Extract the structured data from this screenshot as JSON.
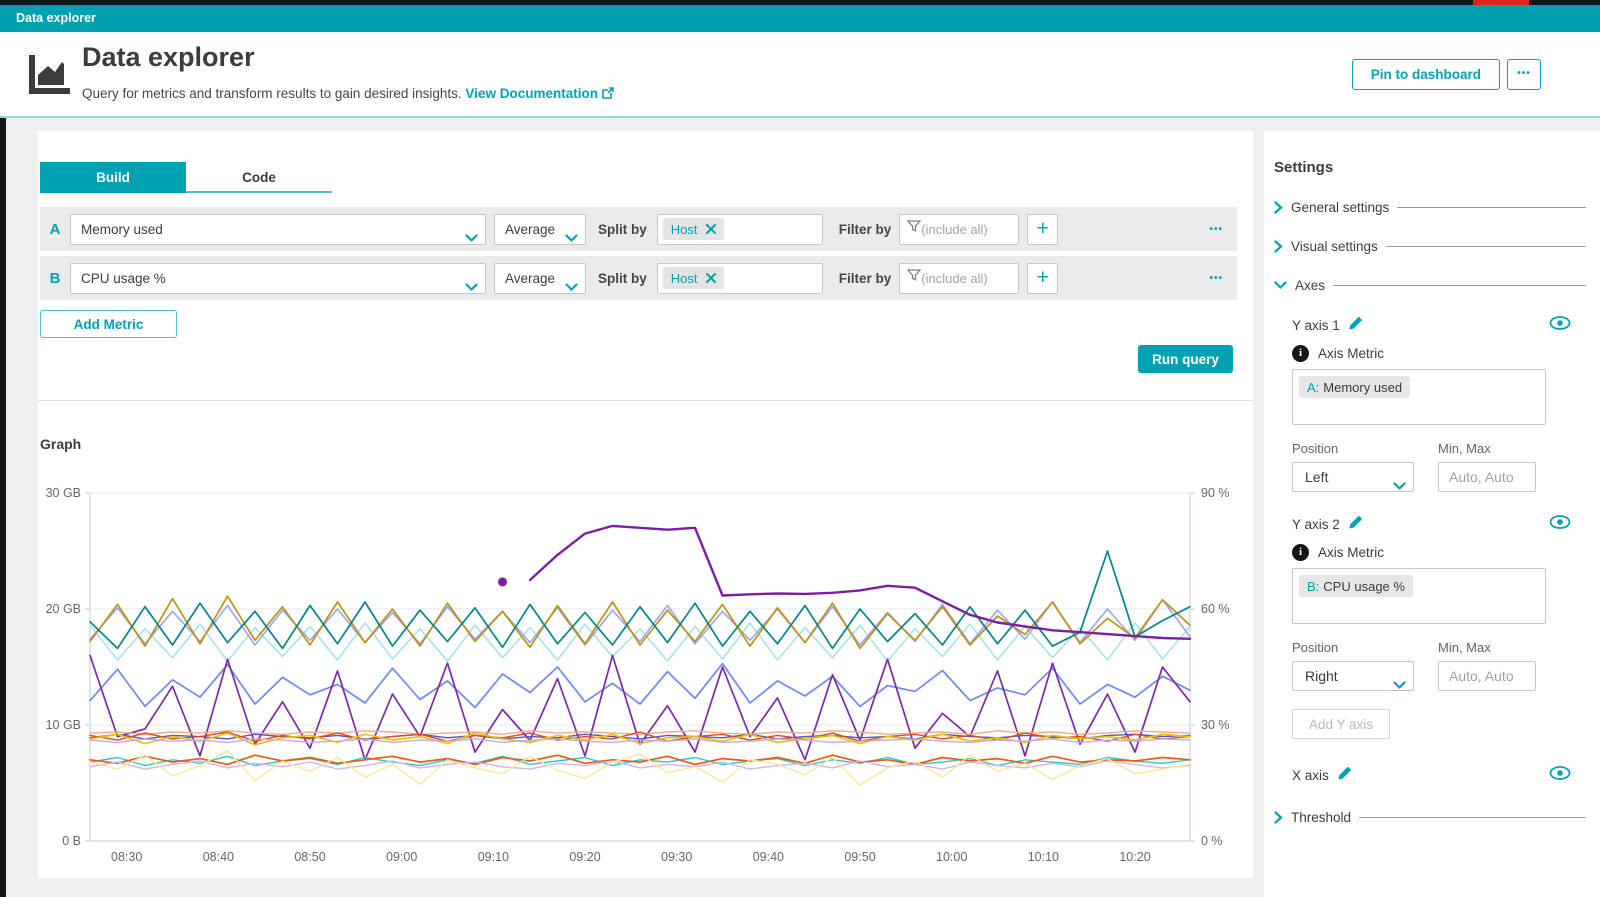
{
  "app_bar": {
    "title": "Data explorer"
  },
  "header": {
    "title": "Data explorer",
    "subtitle": "Query for metrics and transform results to gain desired insights.",
    "doc_link_label": "View Documentation",
    "pin_button_label": "Pin to dashboard",
    "more_button_label": "•••"
  },
  "query_builder": {
    "tabs": [
      {
        "label": "Build"
      },
      {
        "label": "Code"
      }
    ],
    "metrics": [
      {
        "id": "A",
        "metric_name": "Memory used",
        "aggregation": "Average",
        "split_by_label": "Split by",
        "split_chip": "Host",
        "filter_by_label": "Filter by",
        "filter_placeholder": "(include all)",
        "add_label": "+",
        "more_label": "•••"
      },
      {
        "id": "B",
        "metric_name": "CPU usage %",
        "aggregation": "Average",
        "split_by_label": "Split by",
        "split_chip": "Host",
        "filter_by_label": "Filter by",
        "filter_placeholder": "(include all)",
        "add_label": "+",
        "more_label": "•••"
      }
    ],
    "add_metric_label": "Add Metric",
    "run_query_label": "Run query"
  },
  "graph_section": {
    "title": "Graph"
  },
  "chart_data": {
    "type": "line",
    "title": "Graph",
    "x_start": "08:26",
    "x_end": "10:26",
    "x_ticks": [
      "08:30",
      "08:40",
      "08:50",
      "09:00",
      "09:10",
      "09:20",
      "09:30",
      "09:40",
      "09:50",
      "10:00",
      "10:10",
      "10:20"
    ],
    "left_axis": {
      "unit": "GB",
      "min": 0,
      "max": 30,
      "ticks": [
        {
          "v": 0,
          "label": "0 B"
        },
        {
          "v": 10,
          "label": "10 GB"
        },
        {
          "v": 20,
          "label": "20 GB"
        },
        {
          "v": 30,
          "label": "30 GB"
        }
      ]
    },
    "right_axis": {
      "unit": "%",
      "min": 0,
      "max": 90,
      "ticks": [
        {
          "v": 0,
          "label": "0 %"
        },
        {
          "v": 30,
          "label": "30 %"
        },
        {
          "v": 60,
          "label": "60 %"
        },
        {
          "v": 90,
          "label": "90 %"
        }
      ]
    },
    "grid": true,
    "legend": "none",
    "series": [
      {
        "name": "memory-host-pale-cyan",
        "axis": "left",
        "color": "#a8e2e8",
        "width": 1.6,
        "values": [
          18.6,
          15.6,
          18.3,
          15.8,
          18.7,
          15.5,
          18.4,
          15.9,
          18.5,
          15.6,
          18.8,
          15.7,
          18.3,
          15.5,
          18.6,
          15.8,
          18.4,
          15.6,
          18.7,
          15.9,
          18.3,
          15.5,
          18.5,
          15.7,
          18.8,
          15.6,
          18.4,
          15.8,
          18.6,
          15.5,
          18.3,
          15.9,
          18.7,
          15.6,
          18.5,
          15.8,
          18.4,
          15.6,
          18.8,
          15.7,
          18.5
        ]
      },
      {
        "name": "memory-host-periwinkle",
        "axis": "left",
        "color": "#9aa4f2",
        "width": 1.6,
        "values": [
          17.4,
          20.1,
          17.0,
          19.8,
          17.2,
          20.3,
          16.9,
          19.9,
          17.3,
          20.0,
          17.1,
          19.7,
          17.0,
          20.2,
          17.4,
          19.8,
          17.1,
          20.1,
          16.9,
          19.9,
          17.2,
          20.3,
          17.0,
          19.8,
          17.3,
          20.0,
          17.1,
          20.2,
          16.9,
          19.7,
          17.2,
          20.4,
          17.0,
          19.9,
          17.4,
          20.6,
          17.1,
          20.0,
          17.3,
          20.8,
          17.6
        ]
      },
      {
        "name": "memory-host-gold",
        "axis": "left",
        "color": "#bc9312",
        "width": 1.7,
        "values": [
          17.2,
          20.4,
          16.8,
          20.9,
          17.0,
          21.1,
          17.3,
          20.2,
          16.9,
          20.6,
          17.1,
          20.0,
          16.8,
          20.5,
          17.2,
          19.8,
          16.7,
          20.3,
          17.0,
          20.6,
          16.9,
          19.9,
          17.2,
          20.4,
          16.8,
          20.1,
          17.1,
          20.5,
          16.6,
          19.6,
          17.3,
          20.2,
          16.9,
          19.4,
          17.8,
          20.6,
          17.0,
          19.2,
          17.5,
          20.8,
          18.6
        ]
      },
      {
        "name": "memory-host-teal",
        "axis": "left",
        "color": "#00848a",
        "width": 1.7,
        "values": [
          18.9,
          16.6,
          20.2,
          16.9,
          20.5,
          17.1,
          19.8,
          16.6,
          20.3,
          17.0,
          20.6,
          16.8,
          19.9,
          17.2,
          20.1,
          16.7,
          20.4,
          17.0,
          19.7,
          16.9,
          20.2,
          17.1,
          20.5,
          16.8,
          19.8,
          17.0,
          20.3,
          16.6,
          20.0,
          17.2,
          19.6,
          16.9,
          20.2,
          17.0,
          19.9,
          16.8,
          18.0,
          25.0,
          17.6,
          19.0,
          20.2
        ]
      },
      {
        "name": "memory-host-blue",
        "axis": "left",
        "color": "#6e87f2",
        "width": 1.7,
        "values": [
          12.1,
          14.8,
          11.6,
          13.9,
          12.4,
          15.2,
          11.8,
          14.1,
          12.6,
          13.5,
          11.9,
          14.9,
          12.2,
          13.8,
          11.5,
          14.4,
          12.8,
          15.0,
          12.0,
          13.6,
          11.8,
          14.6,
          12.3,
          15.3,
          11.9,
          13.8,
          12.5,
          14.2,
          11.6,
          13.4,
          12.9,
          14.7,
          12.1,
          13.2,
          12.6,
          14.9,
          11.8,
          13.5,
          12.4,
          14.2,
          13.0
        ]
      },
      {
        "name": "cpu-host-purple-jagged",
        "axis": "right",
        "color": "#7c2aa3",
        "width": 1.7,
        "values": [
          48,
          27,
          29,
          40,
          22,
          47,
          25,
          36,
          24,
          44,
          21,
          38,
          27,
          46,
          23,
          34,
          26,
          42,
          22,
          48,
          25,
          35,
          23,
          45,
          27,
          37,
          21,
          43,
          26,
          47,
          24,
          33,
          27,
          44,
          22,
          46,
          25,
          38,
          23,
          45,
          36
        ]
      },
      {
        "name": "memory-host-salmon",
        "axis": "left",
        "color": "#f2a98c",
        "width": 1.4,
        "values": [
          9.3,
          9.4,
          9.2,
          9.4,
          9.3,
          9.5,
          9.3,
          9.2,
          9.4,
          9.3,
          9.5,
          9.4,
          9.2,
          9.3,
          9.4,
          9.2,
          9.5,
          9.3,
          9.4,
          9.3,
          9.2,
          9.4,
          9.5,
          9.3,
          9.2,
          9.4,
          9.3,
          9.5,
          9.4,
          9.2,
          9.3,
          9.4,
          9.2,
          9.5,
          9.3,
          9.4,
          9.2,
          9.3,
          9.5,
          9.4,
          9.3
        ]
      },
      {
        "name": "memory-host-indigo",
        "axis": "left",
        "color": "#4a57c8",
        "width": 1.4,
        "values": [
          8.9,
          9.2,
          8.8,
          9.1,
          9.0,
          8.8,
          9.2,
          9.0,
          8.9,
          9.1,
          8.8,
          9.0,
          9.2,
          8.9,
          9.1,
          8.8,
          9.0,
          8.9,
          9.2,
          9.0,
          8.8,
          9.1,
          9.0,
          8.9,
          9.2,
          8.8,
          9.0,
          9.1,
          8.9,
          9.0,
          8.8,
          9.2,
          9.0,
          8.9,
          9.1,
          9.0,
          8.8,
          9.1,
          9.2,
          9.0,
          9.1
        ]
      },
      {
        "name": "memory-host-red-orange",
        "axis": "left",
        "color": "#e2491c",
        "width": 1.4,
        "values": [
          9.1,
          8.7,
          9.3,
          8.8,
          9.0,
          9.4,
          8.6,
          9.1,
          8.8,
          9.3,
          8.7,
          9.0,
          9.2,
          8.6,
          9.1,
          8.9,
          9.3,
          8.7,
          9.0,
          8.8,
          9.4,
          8.6,
          9.0,
          9.2,
          8.7,
          9.1,
          8.8,
          9.3,
          8.6,
          9.0,
          9.2,
          8.8,
          9.1,
          8.7,
          9.3,
          8.9,
          9.0,
          8.6,
          9.2,
          8.8,
          9.0
        ]
      },
      {
        "name": "memory-host-yellow",
        "axis": "left",
        "color": "#e5c30f",
        "width": 1.7,
        "values": [
          8.8,
          9.2,
          8.4,
          9.0,
          8.6,
          9.3,
          8.3,
          8.9,
          9.1,
          8.5,
          9.2,
          8.7,
          9.0,
          8.4,
          9.3,
          8.8,
          8.5,
          9.1,
          8.7,
          9.2,
          8.4,
          8.9,
          9.0,
          8.6,
          9.2,
          8.5,
          8.8,
          9.1,
          8.4,
          9.0,
          8.7,
          9.2,
          8.6,
          8.9,
          8.5,
          9.1,
          8.8,
          9.0,
          8.7,
          9.2,
          9.0
        ]
      },
      {
        "name": "memory-host-lavender-upper",
        "axis": "left",
        "color": "#c9a7e2",
        "width": 1.4,
        "values": [
          8.7,
          8.5,
          8.8,
          8.6,
          8.7,
          8.5,
          8.8,
          8.7,
          8.5,
          8.6,
          8.8,
          8.5,
          8.7,
          8.6,
          8.8,
          8.5,
          8.7,
          8.8,
          8.6,
          8.5,
          8.7,
          8.6,
          8.8,
          8.5,
          8.6,
          8.8,
          8.7,
          8.5,
          8.6,
          8.7,
          8.8,
          8.6,
          8.5,
          8.7,
          8.6,
          8.8,
          8.5,
          8.7,
          8.6,
          8.8,
          8.7
        ]
      },
      {
        "name": "memory-host-cyan-low",
        "axis": "left",
        "color": "#2fc6c9",
        "width": 1.4,
        "values": [
          6.8,
          7.2,
          6.5,
          7.0,
          6.7,
          7.3,
          6.5,
          6.9,
          7.1,
          6.6,
          7.2,
          6.8,
          6.5,
          7.0,
          6.7,
          7.3,
          6.6,
          6.9,
          7.2,
          6.5,
          7.0,
          6.8,
          7.2,
          6.6,
          6.9,
          7.1,
          6.5,
          7.0,
          6.7,
          7.2,
          6.6,
          6.8,
          7.1,
          6.5,
          7.0,
          6.8,
          6.6,
          7.2,
          6.9,
          6.7,
          7.0
        ]
      },
      {
        "name": "memory-host-orange-low",
        "axis": "left",
        "color": "#e55c13",
        "width": 1.7,
        "values": [
          7.0,
          6.7,
          7.3,
          6.8,
          7.1,
          6.6,
          7.4,
          6.9,
          7.2,
          6.7,
          7.0,
          7.3,
          6.8,
          7.1,
          6.6,
          7.2,
          6.9,
          7.4,
          6.7,
          7.0,
          6.8,
          7.3,
          6.6,
          7.1,
          6.9,
          7.2,
          6.7,
          7.4,
          6.8,
          7.0,
          6.6,
          7.2,
          6.9,
          7.1,
          6.7,
          7.3,
          6.8,
          7.0,
          6.9,
          7.2,
          7.0
        ]
      },
      {
        "name": "memory-host-lavender-low",
        "axis": "left",
        "color": "#d3b3e8",
        "width": 1.4,
        "values": [
          6.4,
          6.8,
          6.2,
          6.6,
          6.9,
          6.3,
          6.7,
          6.4,
          6.8,
          6.2,
          6.5,
          6.9,
          6.3,
          6.6,
          6.8,
          6.4,
          6.2,
          6.7,
          6.5,
          6.9,
          6.3,
          6.6,
          6.4,
          6.8,
          6.2,
          6.5,
          6.7,
          6.3,
          6.9,
          6.4,
          6.6,
          6.2,
          6.8,
          6.5,
          6.3,
          6.7,
          6.4,
          6.9,
          6.6,
          6.3,
          6.5
        ]
      },
      {
        "name": "memory-host-pale-yellow",
        "axis": "left",
        "color": "#fbe59a",
        "width": 1.4,
        "values": [
          6.8,
          6.2,
          7.4,
          5.6,
          6.5,
          7.8,
          5.2,
          6.9,
          6.0,
          7.2,
          5.5,
          6.6,
          4.9,
          7.0,
          6.3,
          5.8,
          7.3,
          6.1,
          5.4,
          6.8,
          7.5,
          5.9,
          6.4,
          5.1,
          7.0,
          6.6,
          5.7,
          7.2,
          4.8,
          6.3,
          6.9,
          5.5,
          7.4,
          6.0,
          6.7,
          5.3,
          6.5,
          7.1,
          5.8,
          6.2,
          6.6
        ]
      },
      {
        "name": "cpu-host-purple-trend",
        "axis": "right",
        "color": "#7a1fa2",
        "width": 2.4,
        "values": [
          null,
          null,
          null,
          null,
          null,
          null,
          null,
          null,
          null,
          null,
          null,
          null,
          null,
          null,
          null,
          null,
          67.5,
          74,
          79.5,
          81.5,
          81,
          80.5,
          81,
          63.5,
          63.8,
          64,
          63.9,
          64.2,
          64.8,
          66,
          65.5,
          62,
          58.5,
          56.5,
          55.5,
          54.5,
          54,
          53.5,
          53,
          52.5,
          52.3
        ]
      },
      {
        "name": "cpu-host-purple-dot",
        "axis": "right",
        "color": "#7a1fa2",
        "marker": "dot",
        "values": [
          null,
          null,
          null,
          null,
          null,
          null,
          null,
          null,
          null,
          null,
          null,
          null,
          null,
          null,
          null,
          67,
          null,
          null,
          null,
          null,
          null,
          null,
          null,
          null,
          null,
          null,
          null,
          null,
          null,
          null,
          null,
          null,
          null,
          null,
          null,
          null,
          null,
          null,
          null,
          null,
          null
        ]
      }
    ]
  },
  "settings_panel": {
    "title": "Settings",
    "general_label": "General settings",
    "visual_label": "Visual settings",
    "axes_label": "Axes",
    "threshold_label": "Threshold",
    "y_axis_1": {
      "label": "Y axis 1",
      "axis_metric_label": "Axis Metric",
      "chip_prefix": "A:",
      "chip_name": "Memory used",
      "position_label": "Position",
      "position_value": "Left",
      "minmax_label": "Min, Max",
      "minmax_placeholder": "Auto, Auto"
    },
    "y_axis_2": {
      "label": "Y axis 2",
      "axis_metric_label": "Axis Metric",
      "chip_prefix": "B:",
      "chip_name": "CPU usage %",
      "position_label": "Position",
      "position_value": "Right",
      "minmax_label": "Min, Max",
      "minmax_placeholder": "Auto, Auto"
    },
    "add_y_axis_label": "Add Y axis",
    "x_axis_label": "X axis"
  },
  "colors": {
    "accent": "#00a1b2",
    "app_bar": "#00a0b0",
    "record_red": "#e0231e"
  }
}
